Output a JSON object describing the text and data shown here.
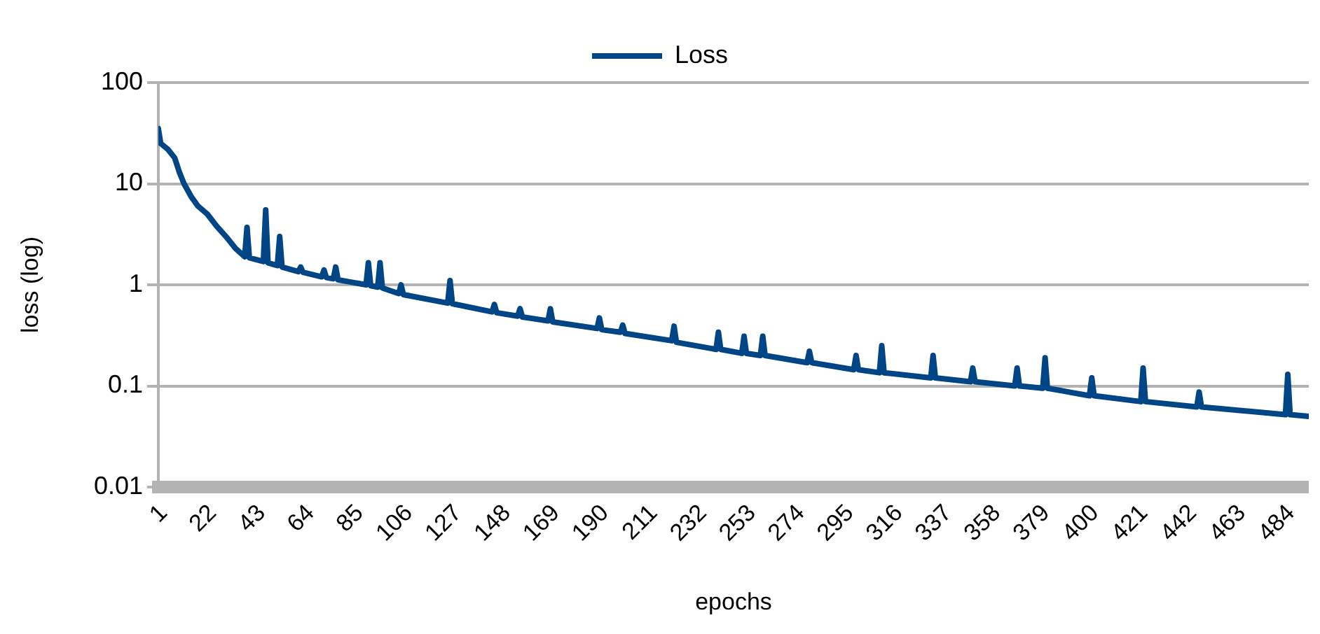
{
  "chart_data": {
    "type": "line",
    "xlabel": "epochs",
    "ylabel": "loss (log)",
    "log": "y",
    "grid": "y",
    "legend": "top",
    "marker": "none",
    "line_style": "solid",
    "xlim": [
      1,
      494
    ],
    "xticks": [
      1,
      22,
      43,
      64,
      85,
      106,
      127,
      148,
      169,
      190,
      211,
      232,
      253,
      274,
      295,
      316,
      337,
      358,
      379,
      400,
      421,
      442,
      463,
      484
    ],
    "ylim": [
      0.01,
      100
    ],
    "yticks": [
      0.01,
      0.1,
      1,
      10,
      100
    ],
    "x": [
      1,
      2,
      5,
      8,
      10,
      12,
      15,
      18,
      22,
      26,
      30,
      34,
      38,
      39,
      40,
      46,
      47,
      48,
      52,
      53,
      54,
      61,
      62,
      63,
      71,
      72,
      73,
      76,
      77,
      78,
      90,
      91,
      92,
      95,
      96,
      97,
      104,
      105,
      106,
      125,
      126,
      127,
      144,
      145,
      146,
      155,
      156,
      157,
      168,
      169,
      170,
      189,
      190,
      191,
      199,
      200,
      201,
      221,
      222,
      223,
      240,
      241,
      242,
      251,
      252,
      253,
      259,
      260,
      261,
      279,
      280,
      281,
      299,
      300,
      301,
      310,
      311,
      312,
      332,
      333,
      334,
      349,
      350,
      351,
      368,
      369,
      370,
      380,
      381,
      382,
      400,
      401,
      402,
      422,
      423,
      424,
      446,
      447,
      448,
      484,
      485,
      486,
      494
    ],
    "series": [
      {
        "name": "Loss",
        "color": "#004586",
        "values": [
          35,
          25,
          22,
          18,
          13,
          10,
          7.5,
          6,
          5,
          3.8,
          3,
          2.3,
          1.9,
          3.7,
          1.85,
          1.7,
          5.5,
          1.65,
          1.55,
          3,
          1.5,
          1.35,
          1.5,
          1.33,
          1.2,
          1.4,
          1.18,
          1.15,
          1.5,
          1.12,
          1.0,
          1.65,
          0.98,
          0.95,
          1.65,
          0.93,
          0.82,
          1.0,
          0.8,
          0.66,
          1.1,
          0.65,
          0.54,
          0.64,
          0.53,
          0.49,
          0.58,
          0.48,
          0.44,
          0.58,
          0.43,
          0.37,
          0.47,
          0.36,
          0.34,
          0.4,
          0.33,
          0.28,
          0.39,
          0.27,
          0.23,
          0.34,
          0.23,
          0.21,
          0.31,
          0.21,
          0.2,
          0.31,
          0.2,
          0.17,
          0.22,
          0.17,
          0.145,
          0.2,
          0.145,
          0.135,
          0.25,
          0.135,
          0.12,
          0.2,
          0.12,
          0.11,
          0.15,
          0.11,
          0.1,
          0.15,
          0.1,
          0.095,
          0.19,
          0.095,
          0.08,
          0.12,
          0.08,
          0.07,
          0.15,
          0.07,
          0.062,
          0.087,
          0.062,
          0.052,
          0.13,
          0.052,
          0.05
        ]
      }
    ]
  }
}
